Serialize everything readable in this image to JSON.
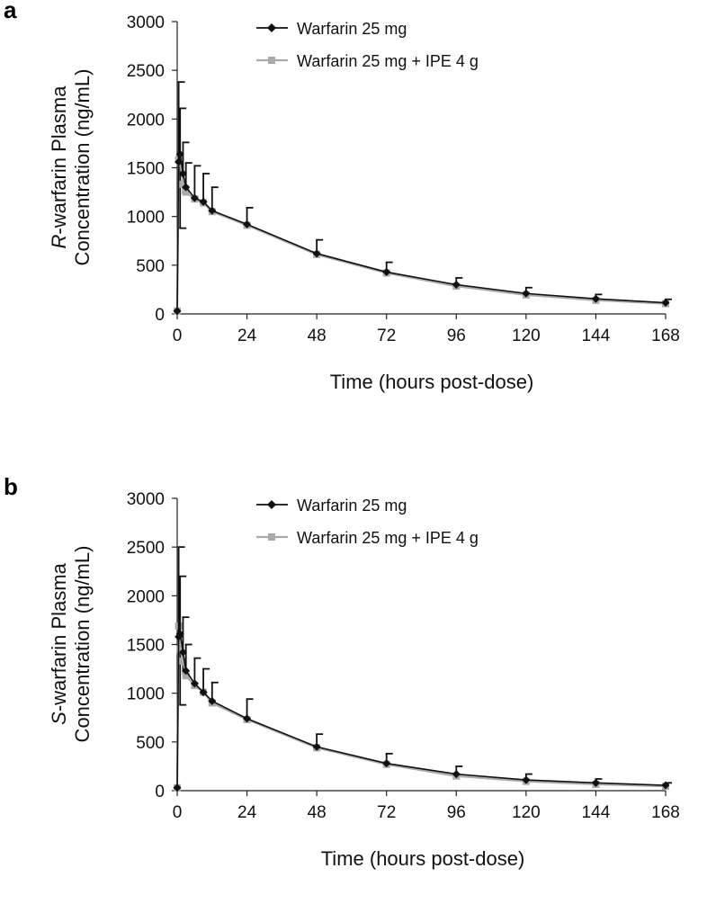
{
  "chart_data": [
    {
      "type": "line",
      "panel_label": "a",
      "ylabel_prefix": "R",
      "ylabel_line1": "-warfarin Plasma",
      "ylabel_line2": "Concentration (ng/mL)",
      "xlabel": "Time (hours post-dose)",
      "xlim": [
        0,
        168
      ],
      "ylim": [
        0,
        3000
      ],
      "xticks": [
        0,
        24,
        48,
        72,
        96,
        120,
        144,
        168
      ],
      "yticks": [
        0,
        500,
        1000,
        1500,
        2000,
        2500,
        3000
      ],
      "legend_position": "top",
      "x": [
        0,
        0.5,
        1,
        2,
        3,
        6,
        9,
        12,
        24,
        48,
        72,
        96,
        120,
        144,
        168
      ],
      "series": [
        {
          "name": "Warfarin 25 mg",
          "color": "#111111",
          "marker": "diamond",
          "values": [
            30,
            1560,
            1640,
            1440,
            1300,
            1190,
            1150,
            1060,
            920,
            620,
            430,
            300,
            210,
            155,
            115
          ],
          "error_upper": [
            0,
            2380,
            2110,
            1760,
            1550,
            1520,
            1440,
            1300,
            1090,
            760,
            530,
            370,
            270,
            200,
            150
          ]
        },
        {
          "name": "Warfarin 25 mg + IPE 4 g",
          "color": "#aaaaaa",
          "marker": "square",
          "values": [
            30,
            1580,
            1560,
            1330,
            1250,
            1180,
            1140,
            1050,
            910,
            610,
            420,
            285,
            195,
            140,
            105
          ],
          "error_lower": [
            0,
            0,
            880,
            1240,
            0,
            0,
            0,
            0,
            0,
            0,
            0,
            0,
            0,
            0,
            0
          ]
        }
      ]
    },
    {
      "type": "line",
      "panel_label": "b",
      "ylabel_prefix": "S",
      "ylabel_line1": "-warfarin Plasma",
      "ylabel_line2": "Concentration (ng/mL)",
      "xlabel": "Time (hours post-dose)",
      "xlim": [
        0,
        168
      ],
      "ylim": [
        0,
        3000
      ],
      "xticks": [
        0,
        24,
        48,
        72,
        96,
        120,
        144,
        168
      ],
      "yticks": [
        0,
        500,
        1000,
        1500,
        2000,
        2500,
        3000
      ],
      "legend_position": "top",
      "x": [
        0,
        0.5,
        1,
        2,
        3,
        6,
        9,
        12,
        24,
        48,
        72,
        96,
        120,
        144,
        168
      ],
      "series": [
        {
          "name": "Warfarin 25 mg",
          "color": "#111111",
          "marker": "diamond",
          "values": [
            30,
            1580,
            1610,
            1420,
            1230,
            1100,
            1010,
            920,
            740,
            450,
            280,
            170,
            110,
            80,
            55
          ],
          "error_upper": [
            0,
            2500,
            2200,
            1780,
            1500,
            1360,
            1250,
            1110,
            940,
            580,
            380,
            250,
            170,
            120,
            80
          ]
        },
        {
          "name": "Warfarin 25 mg + IPE 4 g",
          "color": "#aaaaaa",
          "marker": "square",
          "values": [
            30,
            1690,
            1450,
            1330,
            1180,
            1080,
            1010,
            900,
            730,
            440,
            270,
            150,
            95,
            65,
            45
          ],
          "error_lower": [
            0,
            0,
            880,
            1200,
            0,
            0,
            0,
            0,
            0,
            0,
            0,
            0,
            0,
            0,
            0
          ]
        }
      ]
    }
  ]
}
